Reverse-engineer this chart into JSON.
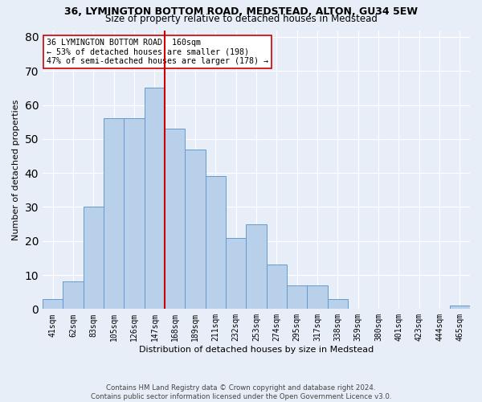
{
  "title1": "36, LYMINGTON BOTTOM ROAD, MEDSTEAD, ALTON, GU34 5EW",
  "title2": "Size of property relative to detached houses in Medstead",
  "xlabel": "Distribution of detached houses by size in Medstead",
  "ylabel": "Number of detached properties",
  "categories": [
    "41sqm",
    "62sqm",
    "83sqm",
    "105sqm",
    "126sqm",
    "147sqm",
    "168sqm",
    "189sqm",
    "211sqm",
    "232sqm",
    "253sqm",
    "274sqm",
    "295sqm",
    "317sqm",
    "338sqm",
    "359sqm",
    "380sqm",
    "401sqm",
    "423sqm",
    "444sqm",
    "465sqm"
  ],
  "values": [
    3,
    8,
    30,
    56,
    56,
    65,
    53,
    47,
    39,
    21,
    25,
    13,
    7,
    7,
    3,
    0,
    0,
    0,
    0,
    0,
    1
  ],
  "bar_color": "#b8d0ea",
  "bar_edge_color": "#6699cc",
  "vline_x": 6.0,
  "vline_color": "#cc0000",
  "annotation_text": "36 LYMINGTON BOTTOM ROAD: 160sqm\n← 53% of detached houses are smaller (198)\n47% of semi-detached houses are larger (178) →",
  "annotation_box_color": "#ffffff",
  "annotation_box_edge": "#cc0000",
  "footer1": "Contains HM Land Registry data © Crown copyright and database right 2024.",
  "footer2": "Contains public sector information licensed under the Open Government Licence v3.0.",
  "ylim": [
    0,
    82
  ],
  "background_color": "#e8eef8",
  "plot_background": "#e8eef8",
  "title1_fontsize": 9,
  "title2_fontsize": 8.5,
  "ylabel_fontsize": 8,
  "xlabel_fontsize": 8
}
